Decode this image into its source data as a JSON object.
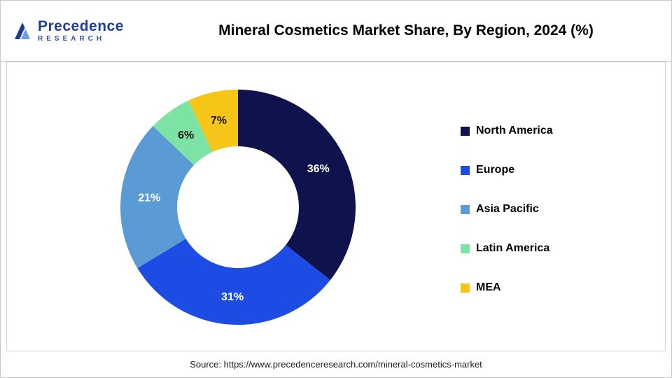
{
  "header": {
    "title": "Mineral Cosmetics Market Share, By Region, 2024 (%)",
    "logo": {
      "line1": "Precedence",
      "line2": "RESEARCH",
      "mark_color_dark": "#1c3f94",
      "mark_color_light": "#6f9fe0"
    }
  },
  "chart_data": {
    "type": "pie",
    "donut": true,
    "title": "Mineral Cosmetics Market Share, By Region, 2024 (%)",
    "legend_position": "right",
    "value_suffix": "%",
    "slices": [
      {
        "label": "North America",
        "value": 36,
        "value_label": "36%",
        "color": "#0E134E",
        "label_color": "#ffffff"
      },
      {
        "label": "Europe",
        "value": 31,
        "value_label": "31%",
        "color": "#1D4CE4",
        "label_color": "#ffffff"
      },
      {
        "label": "Asia Pacific",
        "value": 21,
        "value_label": "21%",
        "color": "#5B9BD5",
        "label_color": "#ffffff"
      },
      {
        "label": "Latin America",
        "value": 6,
        "value_label": "6%",
        "color": "#7CE3A4",
        "label_color": "#1a1a1a"
      },
      {
        "label": "MEA",
        "value": 7,
        "value_label": "7%",
        "color": "#F5C518",
        "label_color": "#1a1a1a"
      }
    ]
  },
  "footer": {
    "source": "Source: https://www.precedenceresearch.com/mineral-cosmetics-market"
  }
}
